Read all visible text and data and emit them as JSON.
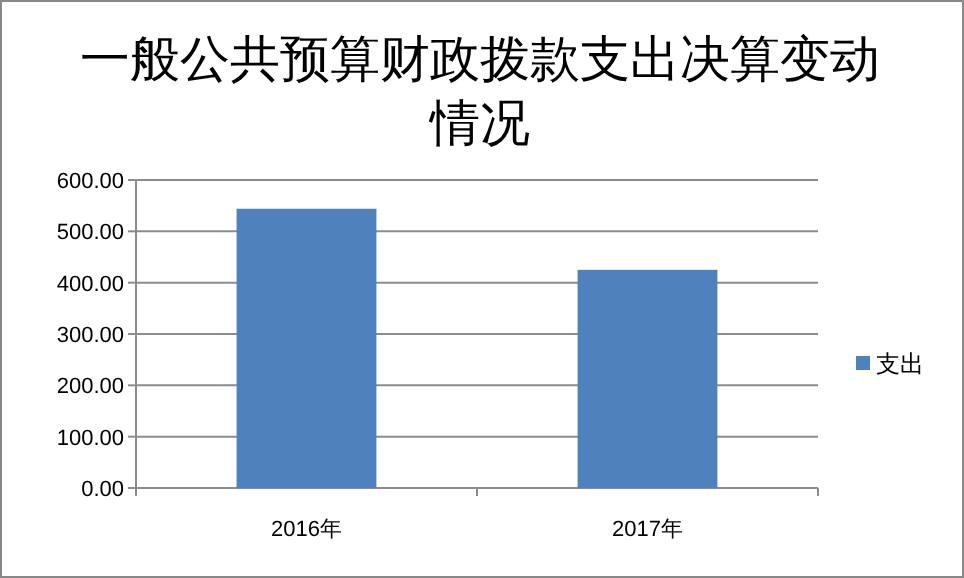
{
  "chart_data": {
    "type": "bar",
    "title": "一般公共预算财政拨款支出决算变动情况",
    "categories": [
      "2016年",
      "2017年"
    ],
    "series": [
      {
        "name": "支出",
        "color": "#4f81bd",
        "values": [
          544,
          425
        ]
      }
    ],
    "ylim": [
      0,
      600
    ],
    "yticks": [
      {
        "value": 0,
        "label": "0.00"
      },
      {
        "value": 100,
        "label": "100.00"
      },
      {
        "value": 200,
        "label": "200.00"
      },
      {
        "value": 300,
        "label": "300.00"
      },
      {
        "value": 400,
        "label": "400.00"
      },
      {
        "value": 500,
        "label": "500.00"
      },
      {
        "value": 600,
        "label": "600.00"
      }
    ],
    "grid": "y",
    "legend": "right"
  }
}
